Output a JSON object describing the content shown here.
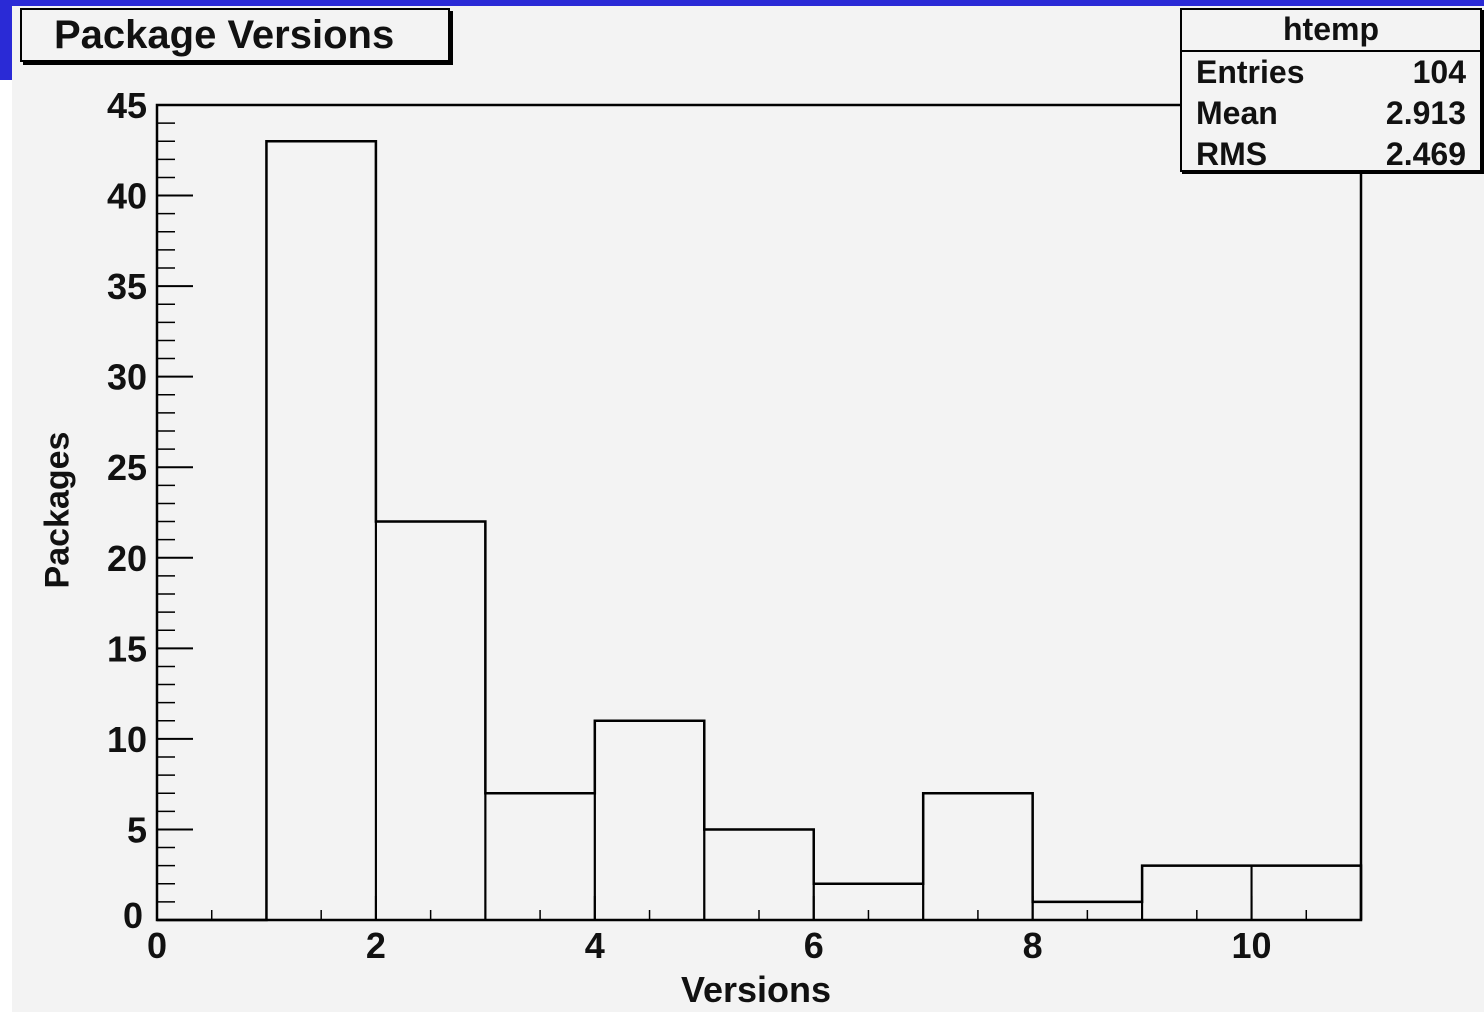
{
  "chart_data": {
    "type": "bar",
    "title": "Package Versions",
    "xlabel": "Versions",
    "ylabel": "Packages",
    "bins": [
      {
        "x0": 0,
        "x1": 1,
        "value": 0
      },
      {
        "x0": 1,
        "x1": 2,
        "value": 43
      },
      {
        "x0": 2,
        "x1": 3,
        "value": 22
      },
      {
        "x0": 3,
        "x1": 4,
        "value": 7
      },
      {
        "x0": 4,
        "x1": 5,
        "value": 11
      },
      {
        "x0": 5,
        "x1": 6,
        "value": 5
      },
      {
        "x0": 6,
        "x1": 7,
        "value": 2
      },
      {
        "x0": 7,
        "x1": 8,
        "value": 7
      },
      {
        "x0": 8,
        "x1": 9,
        "value": 1
      },
      {
        "x0": 9,
        "x1": 10,
        "value": 3
      },
      {
        "x0": 10,
        "x1": 11,
        "value": 3
      }
    ],
    "xlim": [
      0,
      11
    ],
    "ylim": [
      0,
      45
    ],
    "x_ticks": [
      "0",
      "2",
      "4",
      "6",
      "8",
      "10"
    ],
    "y_ticks": [
      "0",
      "5",
      "10",
      "15",
      "20",
      "25",
      "30",
      "35",
      "40",
      "45"
    ],
    "x_tick_values": [
      0,
      2,
      4,
      6,
      8,
      10
    ],
    "y_tick_values": [
      0,
      5,
      10,
      15,
      20,
      25,
      30,
      35,
      40,
      45
    ],
    "grid": false,
    "legend_placement": "top-right",
    "stats": {
      "name": "htemp",
      "entries_label": "Entries",
      "entries": "104",
      "mean_label": "Mean",
      "mean": "2.913",
      "rms_label": "RMS",
      "rms": "2.469"
    }
  },
  "colors": {
    "accent": "#2a2ad6",
    "canvas": "#f3f3f3",
    "line": "#000000"
  }
}
